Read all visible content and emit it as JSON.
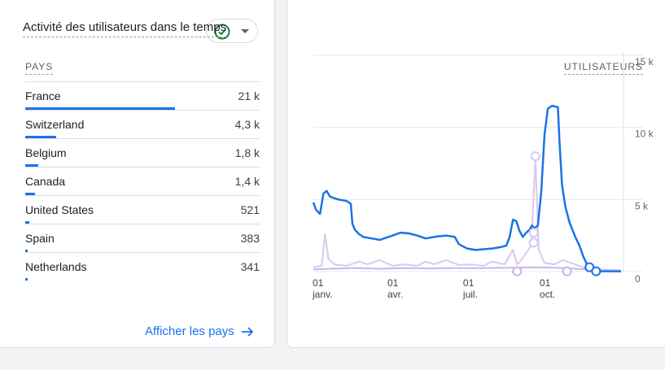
{
  "table": {
    "col_country": "PAYS",
    "col_users": "UTILISATEURS",
    "rows": [
      {
        "country": "France",
        "value": "21 k",
        "share": 1.0
      },
      {
        "country": "Switzerland",
        "value": "4,3 k",
        "share": 0.205
      },
      {
        "country": "Belgium",
        "value": "1,8 k",
        "share": 0.086
      },
      {
        "country": "Canada",
        "value": "1,4 k",
        "share": 0.067
      },
      {
        "country": "United States",
        "value": "521",
        "share": 0.025
      },
      {
        "country": "Spain",
        "value": "383",
        "share": 0.018
      },
      {
        "country": "Netherlands",
        "value": "341",
        "share": 0.016
      }
    ],
    "link_label": "Afficher les pays"
  },
  "colors": {
    "accent": "#1a73e8",
    "success": "#188038",
    "secondary_series": "#d7c9f0"
  },
  "chart_data": {
    "type": "line",
    "title": "Activité des utilisateurs dans le temps",
    "ylim": [
      0,
      15000
    ],
    "yticks": [
      "0",
      "5 k",
      "10 k",
      "15 k"
    ],
    "ytick_values": [
      0,
      5000,
      10000,
      15000
    ],
    "xticks": [
      {
        "day": "01",
        "month": "janv.",
        "pos": 0
      },
      {
        "day": "01",
        "month": "avr.",
        "pos": 90
      },
      {
        "day": "01",
        "month": "juil.",
        "pos": 181
      },
      {
        "day": "01",
        "month": "oct.",
        "pos": 273
      }
    ],
    "x_range_days": [
      0,
      370
    ],
    "series": [
      {
        "color": "#1a73e8",
        "points": [
          [
            0,
            4800
          ],
          [
            3,
            4300
          ],
          [
            8,
            4000
          ],
          [
            12,
            5400
          ],
          [
            16,
            5600
          ],
          [
            20,
            5200
          ],
          [
            30,
            5000
          ],
          [
            40,
            4900
          ],
          [
            45,
            4700
          ],
          [
            47,
            3300
          ],
          [
            50,
            2900
          ],
          [
            55,
            2600
          ],
          [
            60,
            2400
          ],
          [
            70,
            2300
          ],
          [
            80,
            2200
          ],
          [
            95,
            2500
          ],
          [
            105,
            2700
          ],
          [
            115,
            2650
          ],
          [
            125,
            2500
          ],
          [
            135,
            2300
          ],
          [
            150,
            2450
          ],
          [
            160,
            2500
          ],
          [
            170,
            2400
          ],
          [
            175,
            1900
          ],
          [
            185,
            1600
          ],
          [
            195,
            1500
          ],
          [
            205,
            1550
          ],
          [
            215,
            1600
          ],
          [
            225,
            1700
          ],
          [
            232,
            1800
          ],
          [
            236,
            2400
          ],
          [
            240,
            3600
          ],
          [
            244,
            3500
          ],
          [
            248,
            2800
          ],
          [
            252,
            2400
          ],
          [
            256,
            2700
          ],
          [
            260,
            2900
          ],
          [
            263,
            3200
          ],
          [
            266,
            3000
          ],
          [
            270,
            3200
          ],
          [
            274,
            5500
          ],
          [
            278,
            9500
          ],
          [
            282,
            11300
          ],
          [
            287,
            11500
          ],
          [
            294,
            11400
          ],
          [
            296,
            9000
          ],
          [
            299,
            6000
          ],
          [
            303,
            4500
          ],
          [
            308,
            3400
          ],
          [
            315,
            2400
          ],
          [
            320,
            1800
          ],
          [
            325,
            1000
          ],
          [
            330,
            400
          ],
          [
            335,
            80
          ],
          [
            340,
            30
          ],
          [
            370,
            20
          ]
        ]
      },
      {
        "color": "#d7c9f0",
        "points": [
          [
            0,
            300
          ],
          [
            10,
            400
          ],
          [
            14,
            2600
          ],
          [
            18,
            900
          ],
          [
            25,
            500
          ],
          [
            40,
            400
          ],
          [
            55,
            700
          ],
          [
            65,
            500
          ],
          [
            80,
            800
          ],
          [
            95,
            400
          ],
          [
            110,
            500
          ],
          [
            125,
            400
          ],
          [
            135,
            700
          ],
          [
            145,
            500
          ],
          [
            160,
            800
          ],
          [
            175,
            450
          ],
          [
            190,
            500
          ],
          [
            205,
            400
          ],
          [
            215,
            700
          ],
          [
            230,
            500
          ],
          [
            240,
            1500
          ],
          [
            245,
            500
          ],
          [
            250,
            800
          ],
          [
            262,
            1800
          ],
          [
            267,
            7800
          ],
          [
            271,
            1500
          ],
          [
            278,
            600
          ],
          [
            290,
            500
          ],
          [
            300,
            800
          ],
          [
            310,
            600
          ],
          [
            320,
            400
          ],
          [
            330,
            200
          ],
          [
            370,
            100
          ]
        ]
      },
      {
        "color": "#c9b6e8",
        "points": [
          [
            0,
            150
          ],
          [
            20,
            200
          ],
          [
            50,
            250
          ],
          [
            80,
            200
          ],
          [
            110,
            250
          ],
          [
            140,
            220
          ],
          [
            170,
            250
          ],
          [
            200,
            240
          ],
          [
            230,
            260
          ],
          [
            250,
            280
          ],
          [
            266,
            300
          ],
          [
            280,
            280
          ],
          [
            300,
            250
          ],
          [
            330,
            150
          ],
          [
            370,
            80
          ]
        ]
      }
    ],
    "markers": [
      {
        "x": 245,
        "y": 20,
        "color": "#c9b6e8"
      },
      {
        "x": 265,
        "y": 2700,
        "color": "#d7c9f0"
      },
      {
        "x": 265,
        "y": 2000,
        "color": "#d7c9f0"
      },
      {
        "x": 267,
        "y": 8000,
        "color": "#d7c9f0"
      },
      {
        "x": 305,
        "y": 20,
        "color": "#c9b6e8"
      },
      {
        "x": 332,
        "y": 300,
        "color": "#1a73e8"
      },
      {
        "x": 340,
        "y": 20,
        "color": "#1a73e8"
      }
    ]
  }
}
